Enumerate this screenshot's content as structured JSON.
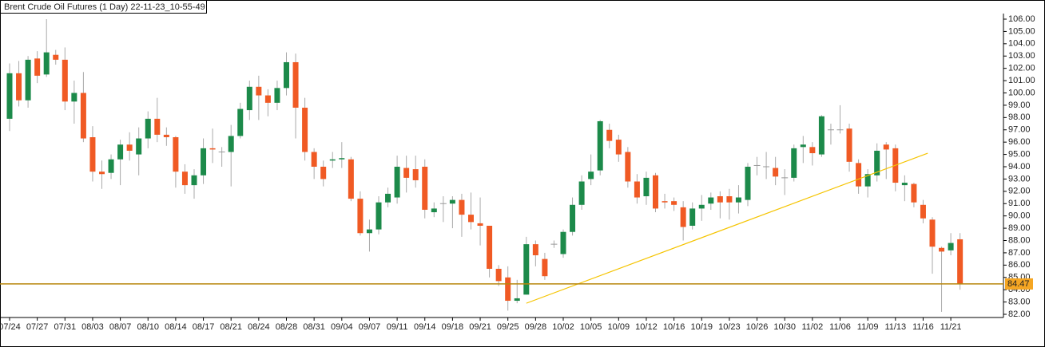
{
  "chart_data": {
    "type": "candlestick",
    "title": "Brent Crude Oil Futures (1 Day) 22-11-23_10-55-49",
    "categories": [
      "07/24",
      null,
      null,
      "07/27",
      null,
      null,
      "07/31",
      null,
      null,
      "08/03",
      null,
      null,
      "08/07",
      null,
      null,
      "08/10",
      null,
      null,
      "08/14",
      null,
      null,
      "08/17",
      null,
      null,
      "08/21",
      null,
      null,
      "08/24",
      null,
      null,
      "08/28",
      null,
      null,
      "08/31",
      null,
      null,
      "09/04",
      null,
      null,
      "09/07",
      null,
      null,
      "09/11",
      null,
      null,
      "09/14",
      null,
      null,
      "09/18",
      null,
      null,
      "09/21",
      null,
      null,
      "09/25",
      null,
      null,
      "09/28",
      null,
      null,
      "10/02",
      null,
      null,
      "10/05",
      null,
      null,
      "10/09",
      null,
      null,
      "10/12",
      null,
      null,
      "10/16",
      null,
      null,
      "10/19",
      null,
      null,
      "10/23",
      null,
      null,
      "10/26",
      null,
      null,
      "10/30",
      null,
      null,
      "11/02",
      null,
      null,
      "11/06",
      null,
      null,
      "11/09",
      null,
      null,
      "11/13",
      null,
      null,
      "11/16",
      null,
      null,
      "11/21",
      null
    ],
    "open": [
      97.9,
      101.6,
      99.4,
      102.8,
      101.5,
      103.1,
      102.7,
      99.3,
      100.0,
      96.4,
      93.6,
      93.5,
      94.6,
      95.8,
      95.0,
      96.3,
      97.9,
      96.6,
      96.4,
      93.6,
      92.5,
      93.3,
      95.5,
      95.2,
      95.2,
      96.5,
      98.6,
      100.5,
      99.8,
      99.2,
      100.4,
      102.5,
      98.8,
      95.2,
      94.0,
      94.5,
      94.6,
      94.6,
      91.4,
      88.6,
      88.9,
      91.1,
      91.5,
      93.9,
      93.8,
      94.0,
      90.3,
      91.0,
      91.0,
      91.3,
      90.1,
      89.4,
      89.2,
      85.7,
      85.0,
      83.1,
      83.6,
      87.7,
      86.5,
      87.7,
      86.9,
      88.7,
      90.9,
      93.0,
      93.7,
      97.0,
      96.2,
      95.2,
      92.8,
      91.6,
      93.3,
      91.2,
      91.2,
      90.7,
      89.2,
      90.6,
      91.0,
      91.6,
      91.6,
      91.1,
      91.3,
      94.1,
      94.0,
      93.9,
      93.1,
      93.1,
      95.6,
      95.6,
      95.0,
      97.0,
      97.0,
      97.1,
      94.3,
      92.4,
      93.3,
      95.8,
      95.5,
      92.5,
      92.6,
      90.9,
      89.7,
      87.4,
      87.2,
      88.1
    ],
    "high": [
      102.4,
      102.6,
      103.0,
      103.4,
      106.0,
      103.5,
      103.7,
      101.0,
      101.7,
      97.3,
      94.5,
      95.0,
      96.2,
      96.8,
      97.2,
      98.5,
      99.6,
      97.2,
      96.5,
      94.2,
      93.8,
      96.3,
      97.1,
      95.6,
      97.4,
      99.2,
      101.0,
      101.4,
      100.3,
      101.0,
      103.3,
      103.2,
      99.6,
      95.5,
      94.5,
      95.2,
      96.0,
      94.8,
      92.0,
      89.7,
      91.6,
      92.3,
      94.9,
      94.9,
      94.9,
      94.6,
      91.1,
      91.6,
      91.6,
      91.8,
      91.9,
      91.5,
      89.2,
      86.0,
      85.9,
      84.8,
      88.3,
      88.0,
      87.0,
      88.0,
      88.9,
      91.5,
      93.3,
      95.0,
      97.8,
      97.5,
      96.6,
      95.6,
      93.4,
      93.6,
      93.5,
      91.8,
      91.5,
      91.2,
      91.1,
      91.7,
      91.9,
      92.0,
      92.2,
      92.5,
      94.3,
      94.8,
      95.2,
      94.8,
      93.8,
      95.8,
      96.5,
      96.0,
      98.2,
      97.5,
      99.0,
      97.5,
      94.6,
      93.8,
      95.9,
      96.0,
      95.8,
      93.3,
      92.7,
      91.3,
      89.9,
      87.5,
      88.6,
      88.6
    ],
    "low": [
      96.9,
      98.9,
      98.8,
      100.8,
      101.3,
      102.3,
      98.6,
      97.5,
      96.0,
      92.8,
      92.2,
      93.0,
      92.5,
      94.5,
      93.3,
      95.5,
      96.0,
      95.7,
      92.3,
      91.8,
      91.4,
      92.6,
      94.3,
      94.0,
      92.4,
      96.3,
      97.8,
      97.8,
      98.1,
      98.6,
      99.8,
      96.3,
      94.5,
      93.0,
      92.4,
      93.9,
      93.9,
      91.2,
      88.4,
      87.1,
      88.5,
      90.7,
      91.0,
      91.9,
      92.3,
      89.8,
      89.9,
      89.5,
      89.0,
      88.3,
      88.9,
      87.6,
      85.0,
      84.3,
      82.3,
      82.9,
      83.6,
      85.9,
      84.8,
      87.4,
      86.6,
      88.4,
      90.5,
      92.5,
      93.3,
      95.5,
      94.4,
      92.3,
      91.0,
      90.9,
      90.3,
      90.6,
      90.4,
      88.0,
      88.9,
      89.6,
      90.5,
      89.8,
      89.7,
      90.2,
      90.8,
      93.3,
      93.0,
      92.5,
      91.7,
      92.8,
      94.3,
      94.1,
      94.8,
      95.8,
      96.7,
      93.6,
      91.8,
      91.5,
      92.8,
      93.0,
      92.0,
      91.2,
      90.7,
      89.4,
      85.3,
      82.2,
      86.8,
      84.0
    ],
    "close": [
      101.6,
      99.4,
      102.7,
      101.4,
      103.3,
      102.7,
      99.3,
      100.0,
      96.3,
      93.6,
      93.4,
      94.6,
      95.8,
      95.3,
      96.3,
      97.9,
      96.6,
      96.4,
      93.6,
      92.5,
      93.3,
      95.5,
      95.4,
      95.2,
      96.5,
      98.7,
      100.5,
      99.8,
      99.2,
      100.4,
      102.5,
      98.8,
      95.2,
      94.0,
      93.0,
      94.6,
      94.7,
      91.4,
      88.6,
      88.9,
      91.1,
      91.8,
      94.0,
      93.1,
      92.9,
      90.5,
      90.6,
      91.0,
      91.3,
      90.1,
      89.5,
      89.2,
      85.7,
      84.7,
      83.1,
      83.3,
      87.7,
      86.8,
      85.1,
      87.7,
      88.7,
      90.9,
      92.8,
      93.6,
      97.7,
      96.1,
      95.0,
      92.8,
      91.5,
      93.1,
      90.6,
      91.1,
      90.9,
      89.1,
      90.6,
      90.9,
      91.5,
      91.1,
      91.1,
      91.5,
      94.0,
      94.1,
      94.0,
      93.2,
      93.1,
      95.5,
      95.8,
      95.1,
      98.1,
      97.0,
      97.0,
      94.4,
      92.4,
      93.4,
      95.3,
      95.4,
      92.7,
      92.7,
      91.1,
      89.8,
      87.5,
      87.1,
      87.8,
      84.5
    ],
    "up_color": "#1c8a4a",
    "down_color": "#f05a24",
    "flat_color": "#999999",
    "ylim": [
      82,
      106
    ],
    "yticks": [
      {
        "value": 82,
        "label": "82.00"
      },
      {
        "value": 83,
        "label": "83.00"
      },
      {
        "value": 84,
        "label": "84.00"
      },
      {
        "value": 85,
        "label": "85.00"
      },
      {
        "value": 86,
        "label": "86.00"
      },
      {
        "value": 87,
        "label": "87.00"
      },
      {
        "value": 88,
        "label": "88.00"
      },
      {
        "value": 89,
        "label": "89.00"
      },
      {
        "value": 90,
        "label": "90.00"
      },
      {
        "value": 91,
        "label": "91.00"
      },
      {
        "value": 92,
        "label": "92.00"
      },
      {
        "value": 93,
        "label": "93.00"
      },
      {
        "value": 94,
        "label": "94.00"
      },
      {
        "value": 95,
        "label": "95.00"
      },
      {
        "value": 96,
        "label": "96.00"
      },
      {
        "value": 97,
        "label": "97.00"
      },
      {
        "value": 98,
        "label": "98.00"
      },
      {
        "value": 99,
        "label": "99.00"
      },
      {
        "value": 100,
        "label": "100.00"
      },
      {
        "value": 101,
        "label": "101.00"
      },
      {
        "value": 102,
        "label": "102.00"
      },
      {
        "value": 103,
        "label": "103.00"
      },
      {
        "value": 104,
        "label": "104.00"
      },
      {
        "value": 105,
        "label": "105.00"
      },
      {
        "value": 106,
        "label": "106.00"
      }
    ],
    "hline": {
      "value": 84.47,
      "color": "#b8860b",
      "label_color": "#f5a623"
    },
    "trendline": {
      "x": [
        56,
        99.5
      ],
      "y": [
        82.9,
        95.1
      ],
      "color": "#f5c400"
    }
  }
}
